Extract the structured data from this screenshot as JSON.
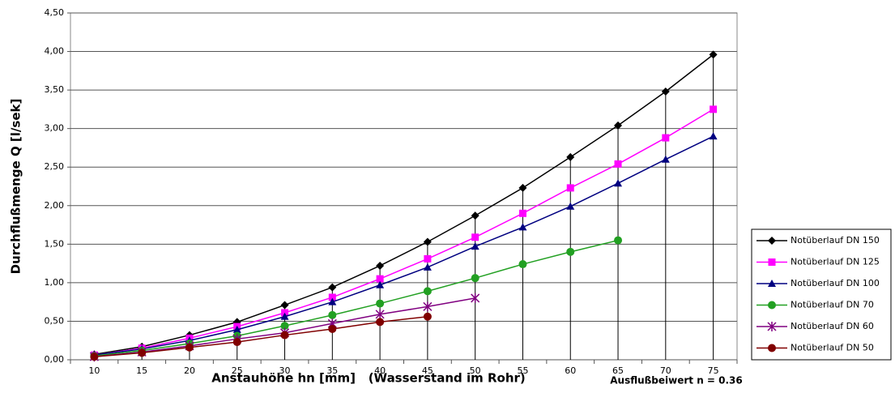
{
  "chart_data": {
    "type": "line",
    "x_label": "Anstauhöhe hn [mm]   (Wasserstand im Rohr)",
    "y_label": "Durchflußmenge Q [l/sek]",
    "annotation": "Ausflußbeiwert n = 0.36",
    "x": [
      10,
      15,
      20,
      25,
      30,
      35,
      40,
      45,
      50,
      55,
      60,
      65,
      70,
      75
    ],
    "xlim": [
      7.5,
      77.5
    ],
    "xticks": [
      10,
      15,
      20,
      25,
      30,
      35,
      40,
      45,
      50,
      55,
      60,
      65,
      70,
      75
    ],
    "ylim": [
      0,
      4.5
    ],
    "yticks": [
      {
        "value": 0,
        "label": "0,00"
      },
      {
        "value": 0.5,
        "label": "0,50"
      },
      {
        "value": 1,
        "label": "1,00"
      },
      {
        "value": 1.5,
        "label": "1,50"
      },
      {
        "value": 2,
        "label": "2,00"
      },
      {
        "value": 2.5,
        "label": "2,50"
      },
      {
        "value": 3,
        "label": "3,00"
      },
      {
        "value": 3.5,
        "label": "3,50"
      },
      {
        "value": 4,
        "label": "4,00"
      },
      {
        "value": 4.5,
        "label": "4,50"
      }
    ],
    "grid": true,
    "drop_lines": true,
    "legend": "right",
    "series": [
      {
        "name": "Notüberlauf DN 150",
        "color": "#000000",
        "marker": "diamond",
        "values": [
          0.07,
          0.17,
          0.32,
          0.49,
          0.71,
          0.94,
          1.22,
          1.53,
          1.87,
          2.23,
          2.63,
          3.04,
          3.48,
          3.96
        ]
      },
      {
        "name": "Notüberlauf DN 125",
        "color": "#ff00ff",
        "marker": "square",
        "values": [
          0.06,
          0.15,
          0.28,
          0.43,
          0.61,
          0.81,
          1.05,
          1.31,
          1.59,
          1.9,
          2.23,
          2.54,
          2.88,
          3.25
        ]
      },
      {
        "name": "Notüberlauf DN 100",
        "color": "#000080",
        "marker": "triangle",
        "values": [
          0.06,
          0.14,
          0.25,
          0.39,
          0.56,
          0.75,
          0.97,
          1.2,
          1.47,
          1.72,
          1.99,
          2.29,
          2.6,
          2.9
        ]
      },
      {
        "name": "Notüberlauf DN 70",
        "color": "#22a022",
        "marker": "circle",
        "values": [
          0.05,
          0.12,
          0.21,
          0.31,
          0.44,
          0.58,
          0.73,
          0.89,
          1.06,
          1.24,
          1.4,
          1.55,
          null,
          null
        ]
      },
      {
        "name": "Notüberlauf DN 60",
        "color": "#800080",
        "marker": "star",
        "values": [
          0.04,
          0.1,
          0.18,
          0.27,
          0.35,
          0.47,
          0.59,
          0.69,
          0.8,
          null,
          null,
          null,
          null,
          null
        ]
      },
      {
        "name": "Notüberlauf DN 50",
        "color": "#800000",
        "marker": "circle",
        "values": [
          0.04,
          0.09,
          0.16,
          0.23,
          0.32,
          0.4,
          0.49,
          0.56,
          null,
          null,
          null,
          null,
          null,
          null
        ]
      }
    ]
  }
}
